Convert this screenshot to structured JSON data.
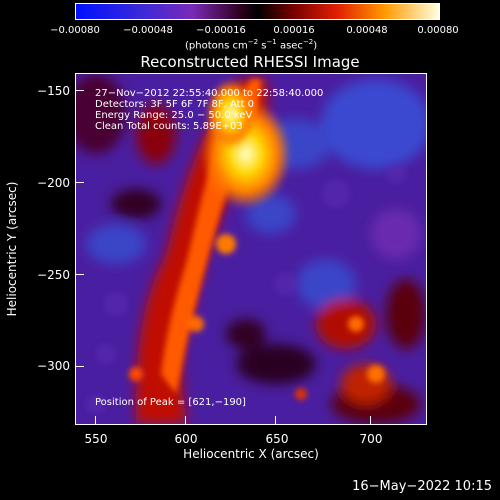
{
  "colorbar": {
    "ticks": [
      "−0.00080",
      "−0.00048",
      "−0.00016",
      "0.00016",
      "0.00048",
      "0.00080"
    ],
    "units_prefix": "(photons cm",
    "units_exp1": "−2",
    "units_mid1": " s",
    "units_exp2": "−1",
    "units_mid2": " asec",
    "units_exp3": "−2",
    "units_suffix": ")"
  },
  "plot": {
    "title": "Reconstructed RHESSI Image",
    "xlabel": "Heliocentric X (arcsec)",
    "ylabel": "Heliocentric Y (arcsec)",
    "xticks": [
      "550",
      "600",
      "650",
      "700"
    ],
    "yticks": [
      "−150",
      "−200",
      "−250",
      "−300"
    ],
    "info": {
      "time": "27−Nov−2012 22:55:40.000 to 22:58:40.000",
      "detectors": "Detectors: 3F 5F 6F 7F 8F, Att 0",
      "energy": "Energy Range: 25.0 − 50.0 keV",
      "method": "Clean      Total counts: 5.89E+03",
      "peak": "Position of Peak = [621,−190]"
    }
  },
  "timestamp": "16−May−2022 10:15"
}
